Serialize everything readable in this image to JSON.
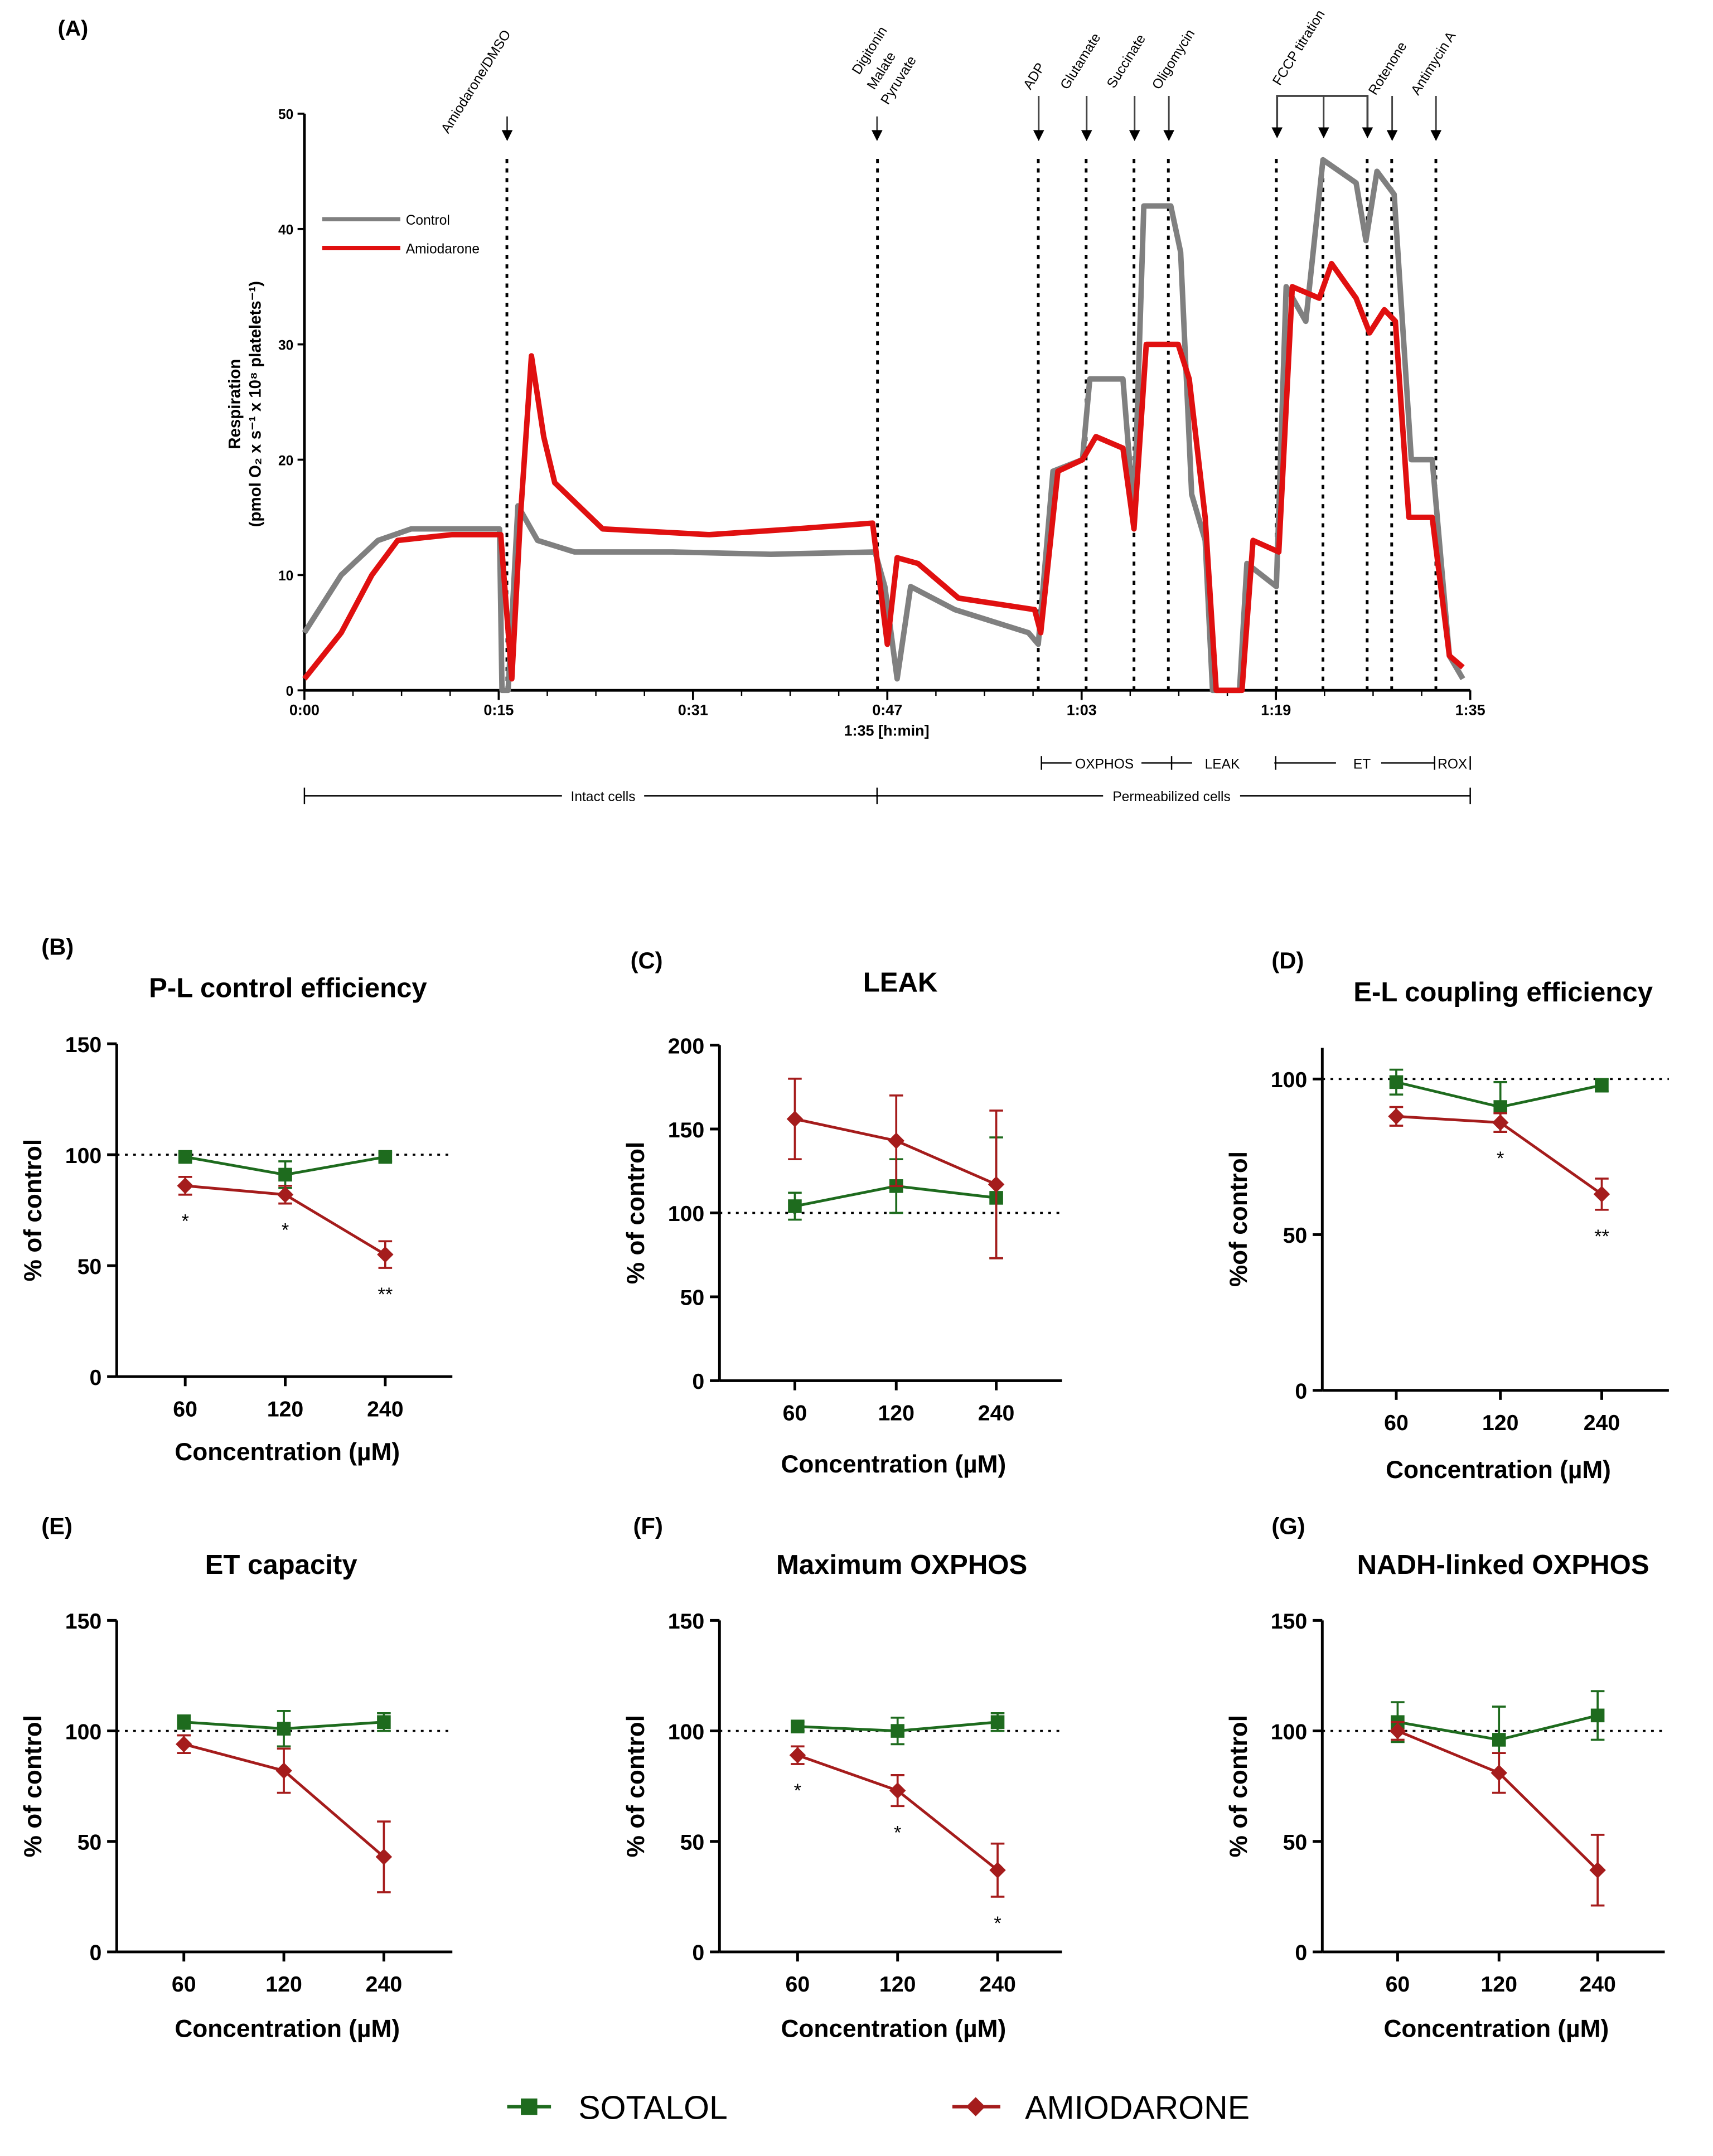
{
  "panel_a": {
    "label": "(A)",
    "ylabel_line1": "Respiration",
    "ylabel_line2": "(pmol O₂ x s⁻¹ x 10⁸ platelets⁻¹)",
    "xlabel": "1:35 [h:min]",
    "legend": [
      "Control",
      "Amiodarone"
    ],
    "events": [
      "Amiodarone/DMSO",
      "Digitonin",
      "Malate",
      "Pyruvate",
      "ADP",
      "Glutamate",
      "Succinate",
      "Oligomycin",
      "FCCP titration",
      "Rotenone",
      "Antimycin A"
    ],
    "phases": [
      "OXPHOS",
      "LEAK",
      "ET",
      "ROX"
    ],
    "states": [
      "Intact cells",
      "Permeabilized cells"
    ]
  },
  "chart_data": [
    {
      "type": "line",
      "id": "A",
      "title": "",
      "xlabel": "1:35 [h:min]",
      "ylabel": "Respiration (pmol O2 x s-1 x 10^8 platelets-1)",
      "xlim": [
        0,
        95
      ],
      "ylim": [
        0,
        50
      ],
      "yticks": [
        "0",
        "10",
        "20",
        "30",
        "40",
        "50"
      ],
      "xticks": [
        "0:00",
        "0:15",
        "0:31",
        "0:47",
        "1:03",
        "1:19",
        "1:35"
      ],
      "event_times_min": [
        16.5,
        46.7,
        59.8,
        63.7,
        67.6,
        70.4,
        79.2,
        83.0,
        86.6,
        88.6,
        92.2
      ],
      "legend_position": "top-left",
      "series": [
        {
          "name": "Control",
          "color": "#808080",
          "points": [
            [
              0,
              5
            ],
            [
              3,
              10
            ],
            [
              6,
              13
            ],
            [
              8.7,
              14
            ],
            [
              12,
              14
            ],
            [
              15.9,
              14
            ],
            [
              16.1,
              0
            ],
            [
              16.6,
              0
            ],
            [
              17.4,
              16
            ],
            [
              19,
              13
            ],
            [
              22,
              12
            ],
            [
              30,
              12
            ],
            [
              38,
              11.8
            ],
            [
              46.5,
              12
            ],
            [
              47.3,
              9
            ],
            [
              48.3,
              1
            ],
            [
              49.4,
              9
            ],
            [
              53,
              7
            ],
            [
              59,
              5
            ],
            [
              59.8,
              4
            ],
            [
              61,
              19
            ],
            [
              63.4,
              20
            ],
            [
              64,
              27
            ],
            [
              66.7,
              27
            ],
            [
              67.6,
              15
            ],
            [
              68.4,
              42
            ],
            [
              70.6,
              42
            ],
            [
              71.4,
              38
            ],
            [
              72.3,
              17
            ],
            [
              73.4,
              13
            ],
            [
              74,
              0
            ],
            [
              76.2,
              0
            ],
            [
              76.8,
              11
            ],
            [
              79.2,
              9
            ],
            [
              80,
              35
            ],
            [
              81.6,
              32
            ],
            [
              83,
              46
            ],
            [
              85.7,
              44
            ],
            [
              86.5,
              39
            ],
            [
              87.4,
              45
            ],
            [
              88.8,
              43
            ],
            [
              90.2,
              20
            ],
            [
              91.9,
              20
            ],
            [
              93.3,
              3
            ],
            [
              94.4,
              1
            ]
          ]
        },
        {
          "name": "Amiodarone",
          "color": "#e01010",
          "points": [
            [
              0,
              1
            ],
            [
              3,
              5
            ],
            [
              5.5,
              10
            ],
            [
              7.6,
              13
            ],
            [
              12,
              13.5
            ],
            [
              16,
              13.5
            ],
            [
              16.9,
              1
            ],
            [
              17.6,
              15
            ],
            [
              18.5,
              29
            ],
            [
              19.5,
              22
            ],
            [
              20.4,
              18
            ],
            [
              24.3,
              14
            ],
            [
              33,
              13.5
            ],
            [
              40,
              14
            ],
            [
              46.3,
              14.5
            ],
            [
              47.5,
              4
            ],
            [
              48.3,
              11.5
            ],
            [
              50,
              11
            ],
            [
              53.3,
              8
            ],
            [
              59.5,
              7
            ],
            [
              60,
              5
            ],
            [
              61.4,
              19
            ],
            [
              63.4,
              20
            ],
            [
              64.5,
              22
            ],
            [
              66.7,
              21
            ],
            [
              67.6,
              14
            ],
            [
              68.6,
              30
            ],
            [
              71.2,
              30
            ],
            [
              72.1,
              27
            ],
            [
              73.4,
              15
            ],
            [
              74.3,
              0
            ],
            [
              76.4,
              0
            ],
            [
              77.3,
              13
            ],
            [
              79.4,
              12
            ],
            [
              80.5,
              35
            ],
            [
              82.7,
              34
            ],
            [
              83.7,
              37
            ],
            [
              85.7,
              34
            ],
            [
              86.8,
              31
            ],
            [
              88,
              33
            ],
            [
              88.9,
              32
            ],
            [
              90,
              15
            ],
            [
              91.9,
              15
            ],
            [
              93.3,
              3
            ],
            [
              94.4,
              2
            ]
          ]
        }
      ]
    },
    {
      "type": "line",
      "id": "B",
      "label": "(B)",
      "title": "P-L control efficiency",
      "xlabel": "Concentration (µM)",
      "ylabel": "% of control",
      "categories": [
        "60",
        "120",
        "240"
      ],
      "ylim": [
        0,
        150
      ],
      "yticks": [
        "0",
        "50",
        "100",
        "150"
      ],
      "reference": 100,
      "series": [
        {
          "name": "SOTALOL",
          "values": [
            99,
            91,
            99
          ],
          "errors": [
            2,
            6,
            2
          ]
        },
        {
          "name": "AMIODARONE",
          "values": [
            86,
            82,
            55
          ],
          "errors": [
            4,
            4,
            6
          ]
        }
      ],
      "annotations": [
        "*",
        "*",
        "**"
      ]
    },
    {
      "type": "line",
      "id": "C",
      "label": "(C)",
      "title": "LEAK",
      "xlabel": "Concentration (µM)",
      "ylabel": "% of control",
      "categories": [
        "60",
        "120",
        "240"
      ],
      "ylim": [
        0,
        200
      ],
      "yticks": [
        "0",
        "50",
        "100",
        "150",
        "200"
      ],
      "reference": 100,
      "series": [
        {
          "name": "SOTALOL",
          "values": [
            104,
            116,
            109
          ],
          "errors": [
            8,
            16,
            36
          ]
        },
        {
          "name": "AMIODARONE",
          "values": [
            156,
            143,
            117
          ],
          "errors": [
            24,
            27,
            44
          ]
        }
      ],
      "annotations": [
        "",
        "",
        ""
      ]
    },
    {
      "type": "line",
      "id": "D",
      "label": "(D)",
      "title": "E-L coupling efficiency",
      "xlabel": "Concentration (µM)",
      "ylabel": "%of control",
      "categories": [
        "60",
        "120",
        "240"
      ],
      "ylim": [
        0,
        110
      ],
      "yticks": [
        "0",
        "50",
        "100"
      ],
      "reference": 100,
      "series": [
        {
          "name": "SOTALOL",
          "values": [
            99,
            91,
            98
          ],
          "errors": [
            4,
            8,
            2
          ]
        },
        {
          "name": "AMIODARONE",
          "values": [
            88,
            86,
            63
          ],
          "errors": [
            3,
            3,
            5
          ]
        }
      ],
      "annotations": [
        "",
        "*",
        "**"
      ]
    },
    {
      "type": "line",
      "id": "E",
      "label": "(E)",
      "title": "ET capacity",
      "xlabel": "Concentration (µM)",
      "ylabel": "% of control",
      "categories": [
        "60",
        "120",
        "240"
      ],
      "ylim": [
        0,
        150
      ],
      "yticks": [
        "0",
        "50",
        "100",
        "150"
      ],
      "reference": 100,
      "series": [
        {
          "name": "SOTALOL",
          "values": [
            104,
            101,
            104
          ],
          "errors": [
            3,
            8,
            4
          ]
        },
        {
          "name": "AMIODARONE",
          "values": [
            94,
            82,
            43
          ],
          "errors": [
            4,
            10,
            16
          ]
        }
      ],
      "annotations": [
        "",
        "",
        ""
      ]
    },
    {
      "type": "line",
      "id": "F",
      "label": "(F)",
      "title": "Maximum OXPHOS",
      "xlabel": "Concentration (µM)",
      "ylabel": "% of control",
      "categories": [
        "60",
        "120",
        "240"
      ],
      "ylim": [
        0,
        150
      ],
      "yticks": [
        "0",
        "50",
        "100",
        "150"
      ],
      "reference": 100,
      "series": [
        {
          "name": "SOTALOL",
          "values": [
            102,
            100,
            104
          ],
          "errors": [
            2,
            6,
            4
          ]
        },
        {
          "name": "AMIODARONE",
          "values": [
            89,
            73,
            37
          ],
          "errors": [
            4,
            7,
            12
          ]
        }
      ],
      "annotations": [
        "*",
        "*",
        "*"
      ]
    },
    {
      "type": "line",
      "id": "G",
      "label": "(G)",
      "title": "NADH-linked OXPHOS",
      "xlabel": "Concentration (µM)",
      "ylabel": "% of control",
      "categories": [
        "60",
        "120",
        "240"
      ],
      "ylim": [
        0,
        150
      ],
      "yticks": [
        "0",
        "50",
        "100",
        "150"
      ],
      "reference": 100,
      "series": [
        {
          "name": "SOTALOL",
          "values": [
            104,
            96,
            107
          ],
          "errors": [
            9,
            15,
            11
          ]
        },
        {
          "name": "AMIODARONE",
          "values": [
            100,
            81,
            37
          ],
          "errors": [
            4,
            9,
            16
          ]
        }
      ],
      "annotations": [
        "",
        "",
        ""
      ]
    }
  ],
  "legend": {
    "items": [
      {
        "name": "SOTALOL",
        "color": "#1e6b1e",
        "marker": "square"
      },
      {
        "name": "AMIODARONE",
        "color": "#a51c1c",
        "marker": "diamond"
      }
    ]
  }
}
